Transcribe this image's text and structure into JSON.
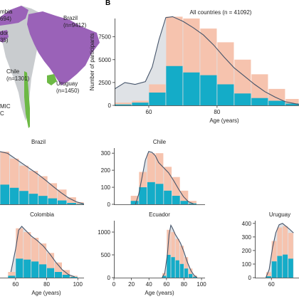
{
  "panel_b_letter": "B",
  "colors": {
    "bar_light": "#f6c3ae",
    "bar_dark": "#14acc8",
    "density_fill": "#dfe2e6",
    "density_line": "#45546a",
    "map_purple": "#9a62b8",
    "map_green": "#6db945",
    "map_gray": "#c9cccf"
  },
  "map": {
    "labels": [
      {
        "key": "colombia_name",
        "text": "mbia"
      },
      {
        "key": "colombia_n",
        "text": "694)"
      },
      {
        "key": "ecuador_name",
        "text": "dor"
      },
      {
        "key": "ecuador_n",
        "text": "35)"
      },
      {
        "key": "brazil_name",
        "text": "Brazil"
      },
      {
        "key": "brazil_n",
        "text": "(n=9412)"
      },
      {
        "key": "chile_name",
        "text": "Chile"
      },
      {
        "key": "chile_n",
        "text": "(n=1301)"
      },
      {
        "key": "uruguay_name",
        "text": "Uruguay"
      },
      {
        "key": "uruguay_n",
        "text": "(n=1450)"
      },
      {
        "key": "legend_1",
        "text": "MIC"
      },
      {
        "key": "legend_2",
        "text": "C"
      }
    ]
  },
  "chart_data": [
    {
      "id": "all",
      "type": "bar",
      "title": "All countries (n = 41092)",
      "xlabel": "Age (years)",
      "ylabel": "Number of participants",
      "xlim": [
        50,
        104
      ],
      "ylim": [
        0,
        9500
      ],
      "xticks": [
        60,
        80
      ],
      "yticks": [
        0,
        2500,
        5000,
        7500
      ],
      "bins": [
        50,
        55,
        60,
        65,
        70,
        75,
        80,
        85,
        90,
        95,
        100,
        104
      ],
      "light": [
        300,
        500,
        2300,
        9700,
        9500,
        8400,
        6900,
        5000,
        3400,
        1800,
        700
      ],
      "dark": [
        100,
        300,
        1400,
        4300,
        3600,
        3300,
        2300,
        1300,
        800,
        500,
        200
      ],
      "curve": [
        [
          50,
          1800
        ],
        [
          53,
          2500
        ],
        [
          56,
          2300
        ],
        [
          59,
          2600
        ],
        [
          61,
          4200
        ],
        [
          63,
          7200
        ],
        [
          65,
          9600
        ],
        [
          67,
          9700
        ],
        [
          70,
          9200
        ],
        [
          73,
          8500
        ],
        [
          76,
          7700
        ],
        [
          79,
          6600
        ],
        [
          82,
          5300
        ],
        [
          85,
          4100
        ],
        [
          88,
          3200
        ],
        [
          91,
          2300
        ],
        [
          94,
          1500
        ],
        [
          97,
          900
        ],
        [
          100,
          400
        ],
        [
          104,
          100
        ]
      ]
    },
    {
      "id": "brazil",
      "type": "bar",
      "title": "Brazil",
      "xlim": [
        60,
        104
      ],
      "ylim": [
        0,
        1600
      ],
      "xticks": [],
      "yticks": [],
      "bins": [
        60,
        65,
        70,
        75,
        80,
        85,
        90,
        95,
        100,
        104
      ],
      "light": [
        1500,
        1300,
        1100,
        950,
        800,
        600,
        420,
        200,
        60
      ],
      "dark": [
        560,
        470,
        380,
        300,
        240,
        170,
        110,
        40,
        10
      ],
      "curve": [
        [
          60,
          1500
        ],
        [
          64,
          1450
        ],
        [
          68,
          1300
        ],
        [
          72,
          1150
        ],
        [
          76,
          1000
        ],
        [
          80,
          850
        ],
        [
          84,
          680
        ],
        [
          88,
          500
        ],
        [
          92,
          330
        ],
        [
          96,
          180
        ],
        [
          100,
          70
        ],
        [
          104,
          10
        ]
      ]
    },
    {
      "id": "chile",
      "type": "bar",
      "title": "Chile",
      "xlabel": "",
      "xlim": [
        45,
        100
      ],
      "ylim": [
        0,
        330
      ],
      "xticks": [],
      "yticks": [
        0,
        100,
        200,
        300
      ],
      "bins": [
        55,
        60,
        65,
        70,
        75,
        80,
        85,
        90,
        95
      ],
      "light": [
        50,
        190,
        300,
        300,
        220,
        160,
        80,
        20
      ],
      "dark": [
        20,
        100,
        130,
        120,
        80,
        50,
        20,
        5
      ],
      "curve": [
        [
          58,
          0
        ],
        [
          60,
          60
        ],
        [
          62,
          160
        ],
        [
          64,
          260
        ],
        [
          66,
          310
        ],
        [
          68,
          305
        ],
        [
          70,
          285
        ],
        [
          72,
          245
        ],
        [
          75,
          215
        ],
        [
          78,
          185
        ],
        [
          81,
          140
        ],
        [
          84,
          90
        ],
        [
          87,
          45
        ],
        [
          90,
          15
        ],
        [
          93,
          3
        ]
      ]
    },
    {
      "id": "colombia",
      "type": "bar",
      "title": "Colombia",
      "xlabel": "Age (years)",
      "xlim": [
        50,
        104
      ],
      "ylim": [
        0,
        3000
      ],
      "xticks": [
        60,
        80,
        100
      ],
      "yticks": [],
      "bins": [
        55,
        60,
        65,
        70,
        75,
        80,
        85,
        90,
        95,
        100
      ],
      "light": [
        300,
        2600,
        2400,
        2100,
        1800,
        1300,
        800,
        400,
        100
      ],
      "dark": [
        100,
        1000,
        950,
        850,
        700,
        500,
        300,
        150,
        40
      ],
      "curve": [
        [
          57,
          300
        ],
        [
          60,
          1500
        ],
        [
          62,
          2500
        ],
        [
          64,
          2700
        ],
        [
          67,
          2450
        ],
        [
          70,
          2200
        ],
        [
          74,
          1950
        ],
        [
          78,
          1650
        ],
        [
          82,
          1250
        ],
        [
          86,
          800
        ],
        [
          90,
          420
        ],
        [
          94,
          160
        ],
        [
          98,
          40
        ]
      ]
    },
    {
      "id": "ecuador",
      "type": "bar",
      "title": "Ecuador",
      "xlabel": "Age (years)",
      "xlim": [
        0,
        104
      ],
      "ylim": [
        0,
        1250
      ],
      "xticks": [
        0,
        20,
        40,
        60,
        80,
        100
      ],
      "yticks": [
        0,
        500,
        1000
      ],
      "bins": [
        55,
        60,
        65,
        70,
        75,
        80,
        85,
        90,
        95
      ],
      "light": [
        100,
        1050,
        1000,
        850,
        700,
        450,
        200,
        50
      ],
      "dark": [
        40,
        500,
        450,
        380,
        300,
        200,
        80,
        20
      ],
      "curve": [
        [
          55,
          0
        ],
        [
          58,
          100
        ],
        [
          61,
          500
        ],
        [
          63,
          950
        ],
        [
          65,
          1150
        ],
        [
          67,
          1080
        ],
        [
          70,
          950
        ],
        [
          73,
          860
        ],
        [
          76,
          760
        ],
        [
          80,
          560
        ],
        [
          84,
          330
        ],
        [
          88,
          150
        ],
        [
          92,
          40
        ],
        [
          95,
          5
        ]
      ]
    },
    {
      "id": "uruguay",
      "type": "bar",
      "title": "Uruguay",
      "xlabel": "",
      "xlim": [
        45,
        85
      ],
      "ylim": [
        0,
        420
      ],
      "xticks": [
        60
      ],
      "yticks": [
        0,
        100,
        200,
        300,
        400
      ],
      "bins": [
        55,
        60,
        65,
        70,
        75,
        80
      ],
      "light": [
        40,
        270,
        370,
        380,
        330
      ],
      "dark": [
        10,
        120,
        160,
        170,
        140
      ],
      "curve": [
        [
          55,
          0
        ],
        [
          58,
          60
        ],
        [
          61,
          220
        ],
        [
          64,
          330
        ],
        [
          67,
          390
        ],
        [
          70,
          400
        ],
        [
          73,
          380
        ],
        [
          76,
          360
        ],
        [
          80,
          330
        ]
      ]
    }
  ]
}
